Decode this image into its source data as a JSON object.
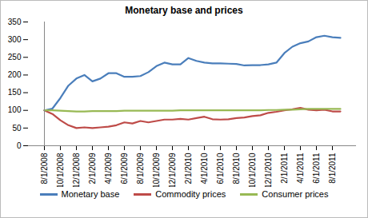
{
  "chart_data": {
    "type": "line",
    "title": "Monetary base and prices",
    "categories": [
      "8/1/2008",
      null,
      "10/1/2008",
      null,
      "12/1/2008",
      null,
      "2/1/2009",
      null,
      "4/1/2009",
      null,
      "6/1/2009",
      null,
      "8/1/2009",
      null,
      "10/1/2009",
      null,
      "12/1/2009",
      null,
      "2/1/2010",
      null,
      "4/1/2010",
      null,
      "6/1/2010",
      null,
      "8/1/2010",
      null,
      "10/1/2010",
      null,
      "12/1/2010",
      null,
      "2/1/2011",
      null,
      "4/1/2011",
      null,
      "6/1/2011",
      null,
      "8/1/2011",
      null
    ],
    "series": [
      {
        "name": "Monetary base",
        "color": "#4a7ebb",
        "values": [
          100,
          105,
          135,
          170,
          190,
          200,
          182,
          190,
          205,
          205,
          195,
          195,
          197,
          208,
          225,
          235,
          230,
          230,
          248,
          240,
          235,
          233,
          233,
          232,
          231,
          227,
          228,
          228,
          230,
          235,
          262,
          280,
          290,
          295,
          307,
          311,
          307,
          305
        ]
      },
      {
        "name": "Commodity prices",
        "color": "#be4b48",
        "values": [
          100,
          90,
          72,
          58,
          50,
          52,
          50,
          52,
          54,
          58,
          66,
          63,
          70,
          66,
          70,
          74,
          74,
          76,
          74,
          78,
          82,
          75,
          74,
          75,
          78,
          80,
          84,
          86,
          93,
          96,
          100,
          103,
          107,
          102,
          100,
          102,
          97,
          97
        ]
      },
      {
        "name": "Consumer prices",
        "color": "#98b954",
        "values": [
          100,
          100,
          99,
          98,
          97,
          97,
          98,
          98,
          98,
          98,
          99,
          99,
          99,
          99,
          99,
          99,
          99,
          100,
          100,
          100,
          100,
          100,
          100,
          100,
          100,
          100,
          100,
          100,
          101,
          101,
          102,
          102,
          103,
          104,
          104,
          104,
          104,
          104
        ]
      }
    ],
    "ylim": [
      0,
      350
    ],
    "yticks": [
      0,
      50,
      100,
      150,
      200,
      250,
      300,
      350
    ],
    "grid": false,
    "legend": "bottom"
  }
}
